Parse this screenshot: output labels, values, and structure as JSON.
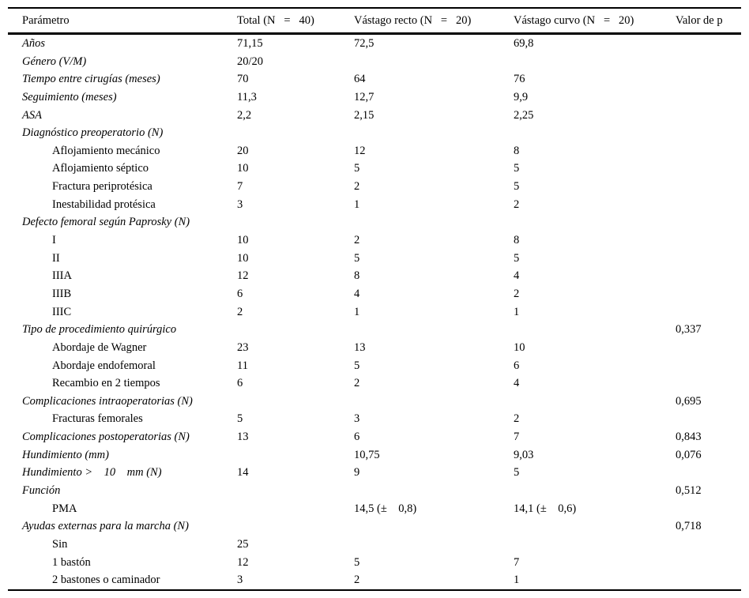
{
  "table": {
    "columns": [
      "Parámetro",
      "Total (N   =   40)",
      "Vástago recto (N   =   20)",
      "Vástago curvo (N   =   20)",
      "Valor de p"
    ],
    "rows": [
      {
        "label": "Años",
        "style": "section",
        "total": "71,15",
        "recto": "72,5",
        "curvo": "69,8",
        "p": ""
      },
      {
        "label": "Género (V/M)",
        "style": "section",
        "total": "20/20",
        "recto": "",
        "curvo": "",
        "p": ""
      },
      {
        "label": "Tiempo entre cirugías (meses)",
        "style": "section",
        "total": "70",
        "recto": "64",
        "curvo": "76",
        "p": ""
      },
      {
        "label": "Seguimiento (meses)",
        "style": "section",
        "total": "11,3",
        "recto": "12,7",
        "curvo": "9,9",
        "p": ""
      },
      {
        "label": "ASA",
        "style": "section",
        "total": "2,2",
        "recto": "2,15",
        "curvo": "2,25",
        "p": ""
      },
      {
        "label": "Diagnóstico preoperatorio (N)",
        "style": "section",
        "total": "",
        "recto": "",
        "curvo": "",
        "p": ""
      },
      {
        "label": "Aflojamiento mecánico",
        "style": "sub",
        "total": "20",
        "recto": "12",
        "curvo": "8",
        "p": ""
      },
      {
        "label": "Aflojamiento séptico",
        "style": "sub",
        "total": "10",
        "recto": "5",
        "curvo": "5",
        "p": ""
      },
      {
        "label": "Fractura periprotésica",
        "style": "sub",
        "total": "7",
        "recto": "2",
        "curvo": "5",
        "p": ""
      },
      {
        "label": "Inestabilidad protésica",
        "style": "sub",
        "total": "3",
        "recto": "1",
        "curvo": "2",
        "p": ""
      },
      {
        "label": "Defecto femoral según Paprosky (N)",
        "style": "section",
        "total": "",
        "recto": "",
        "curvo": "",
        "p": ""
      },
      {
        "label": "I",
        "style": "sub",
        "total": "10",
        "recto": "2",
        "curvo": "8",
        "p": ""
      },
      {
        "label": "II",
        "style": "sub",
        "total": "10",
        "recto": "5",
        "curvo": "5",
        "p": ""
      },
      {
        "label": "IIIA",
        "style": "sub",
        "total": "12",
        "recto": "8",
        "curvo": "4",
        "p": ""
      },
      {
        "label": "IIIB",
        "style": "sub",
        "total": "6",
        "recto": "4",
        "curvo": "2",
        "p": ""
      },
      {
        "label": "IIIC",
        "style": "sub",
        "total": "2",
        "recto": "1",
        "curvo": "1",
        "p": ""
      },
      {
        "label": "Tipo de procedimiento quirúrgico",
        "style": "section",
        "total": "",
        "recto": "",
        "curvo": "",
        "p": "0,337"
      },
      {
        "label": "Abordaje de Wagner",
        "style": "sub",
        "total": "23",
        "recto": "13",
        "curvo": "10",
        "p": ""
      },
      {
        "label": "Abordaje endofemoral",
        "style": "sub",
        "total": "11",
        "recto": "5",
        "curvo": "6",
        "p": ""
      },
      {
        "label": "Recambio en 2 tiempos",
        "style": "sub",
        "total": "6",
        "recto": "2",
        "curvo": "4",
        "p": ""
      },
      {
        "label": "Complicaciones intraoperatorias (N)",
        "style": "section",
        "total": "",
        "recto": "",
        "curvo": "",
        "p": "0,695"
      },
      {
        "label": "Fracturas femorales",
        "style": "sub",
        "total": "5",
        "recto": "3",
        "curvo": "2",
        "p": ""
      },
      {
        "label": "Complicaciones postoperatorias (N)",
        "style": "section",
        "total": "13",
        "recto": "6",
        "curvo": "7",
        "p": "0,843"
      },
      {
        "label": "Hundimiento (mm)",
        "style": "section",
        "total": "",
        "recto": "10,75",
        "curvo": "9,03",
        "p": "0,076"
      },
      {
        "label": "Hundimiento >    10    mm (N)",
        "style": "section",
        "total": "14",
        "recto": "9",
        "curvo": "5",
        "p": ""
      },
      {
        "label": "Función",
        "style": "section",
        "total": "",
        "recto": "",
        "curvo": "",
        "p": "0,512"
      },
      {
        "label": "PMA",
        "style": "sub",
        "total": "",
        "recto": "14,5 (±    0,8)",
        "curvo": "14,1 (±    0,6)",
        "p": ""
      },
      {
        "label": "Ayudas externas para la marcha (N)",
        "style": "section",
        "total": "",
        "recto": "",
        "curvo": "",
        "p": "0,718"
      },
      {
        "label": "Sin",
        "style": "sub",
        "total": "25",
        "recto": "",
        "curvo": "",
        "p": ""
      },
      {
        "label": "1 bastón",
        "style": "sub",
        "total": "12",
        "recto": "5",
        "curvo": "7",
        "p": ""
      },
      {
        "label": "2 bastones o caminador",
        "style": "sub",
        "total": "3",
        "recto": "2",
        "curvo": "1",
        "p": ""
      }
    ]
  }
}
